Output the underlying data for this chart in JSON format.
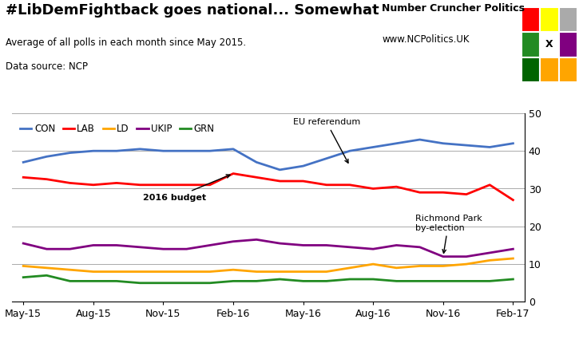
{
  "title": "#LibDemFightback goes national... Somewhat",
  "subtitle": "Average of all polls in each month since May 2015.",
  "datasource": "Data source: NCP",
  "watermark_line1": "Number Cruncher Politics",
  "watermark_line2": "www.NCPolitics.UK",
  "ylim": [
    0,
    50
  ],
  "yticks": [
    0,
    10,
    20,
    30,
    40,
    50
  ],
  "x_labels": [
    "May-15",
    "Aug-15",
    "Nov-15",
    "Feb-16",
    "May-16",
    "Aug-16",
    "Nov-16",
    "Feb-17"
  ],
  "x_tick_positions": [
    0,
    3,
    6,
    9,
    12,
    15,
    18,
    21
  ],
  "series": {
    "CON": {
      "color": "#4472C4",
      "values": [
        37,
        38.5,
        39.5,
        40,
        40,
        40.5,
        40,
        40,
        40,
        40.5,
        37,
        35,
        36,
        38,
        40,
        41,
        42,
        43,
        42,
        41.5,
        41,
        42
      ]
    },
    "LAB": {
      "color": "#FF0000",
      "values": [
        33,
        32.5,
        31.5,
        31,
        31.5,
        31,
        31,
        31,
        31,
        34,
        33,
        32,
        32,
        31,
        31,
        30,
        30.5,
        29,
        29,
        28.5,
        31,
        27
      ]
    },
    "LD": {
      "color": "#FFA500",
      "values": [
        9.5,
        9,
        8.5,
        8,
        8,
        8,
        8,
        8,
        8,
        8.5,
        8,
        8,
        8,
        8,
        9,
        10,
        9,
        9.5,
        9.5,
        10,
        11,
        11.5
      ]
    },
    "UKIP": {
      "color": "#800080",
      "values": [
        15.5,
        14,
        14,
        15,
        15,
        14.5,
        14,
        14,
        15,
        16,
        16.5,
        15.5,
        15,
        15,
        14.5,
        14,
        15,
        14.5,
        12,
        12,
        13,
        14
      ]
    },
    "GRN": {
      "color": "#228B22",
      "values": [
        6.5,
        7,
        5.5,
        5.5,
        5.5,
        5,
        5,
        5,
        5,
        5.5,
        5.5,
        6,
        5.5,
        5.5,
        6,
        6,
        5.5,
        5.5,
        5.5,
        5.5,
        5.5,
        6
      ]
    }
  },
  "legend_entries": [
    "CON",
    "LAB",
    "LD",
    "UKIP",
    "GRN"
  ],
  "legend_colors": [
    "#4472C4",
    "#FF0000",
    "#FFA500",
    "#800080",
    "#228B22"
  ],
  "logo_colors": [
    [
      "#FF0000",
      "#FFFF00",
      "#CCCCCC"
    ],
    [
      "#228B22",
      "#FFFFFF",
      "#800080"
    ],
    [
      "#006400",
      "#FFA500",
      "#FFA500"
    ]
  ]
}
